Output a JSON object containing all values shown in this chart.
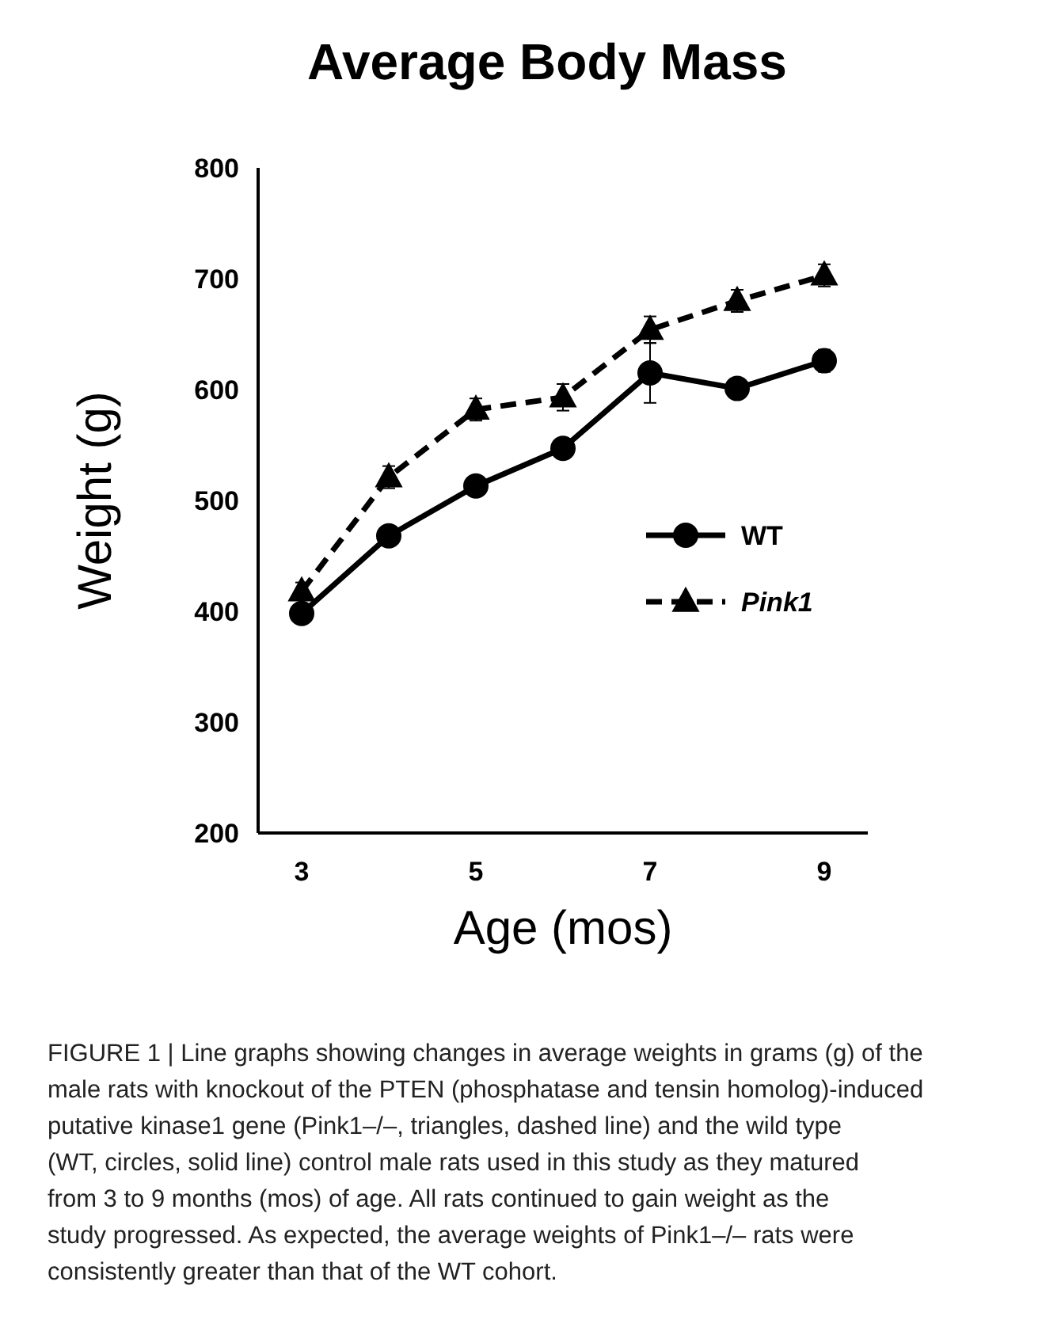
{
  "chart_data": {
    "type": "line",
    "title": "Average Body Mass",
    "xlabel": "Age (mos)",
    "ylabel": "Weight (g)",
    "x": [
      3,
      4,
      5,
      6,
      7,
      8,
      9
    ],
    "series": [
      {
        "name": "WT",
        "color": "#000000",
        "values": [
          398,
          468,
          513,
          547,
          615,
          601,
          626
        ],
        "errors": [
          5,
          6,
          6,
          6,
          27,
          8,
          10
        ],
        "marker": "circle",
        "line_style": "solid"
      },
      {
        "name": "Pink1",
        "color": "#000000",
        "values": [
          418,
          521,
          582,
          593,
          654,
          680,
          703
        ],
        "errors": [
          8,
          10,
          10,
          12,
          12,
          10,
          10
        ],
        "marker": "triangle",
        "line_style": "dashed"
      }
    ],
    "xlim": [
      2.5,
      9.5
    ],
    "xticks": [
      3,
      5,
      7,
      9
    ],
    "ylim": [
      200,
      800
    ],
    "yticks": [
      200,
      300,
      400,
      500,
      600,
      700,
      800
    ],
    "grid": false,
    "legend": "right",
    "annotations": [
      "FIGURE 1 | Line graphs showing changes in average weights in grams (g) of the male rats with knockout of the PTEN (phosphatase and tensin homolog)-induced putative kinase1 gene (Pink1–/–, triangles, dashed line) and the wild type (WT, circles, solid line) control male rats used in this study as they matured from 3 to 9 months (mos) of age. All rats continued to gain weight as the study progressed. As expected, the average weights of Pink1–/– rats were consistently greater than that of the WT cohort."
    ]
  }
}
